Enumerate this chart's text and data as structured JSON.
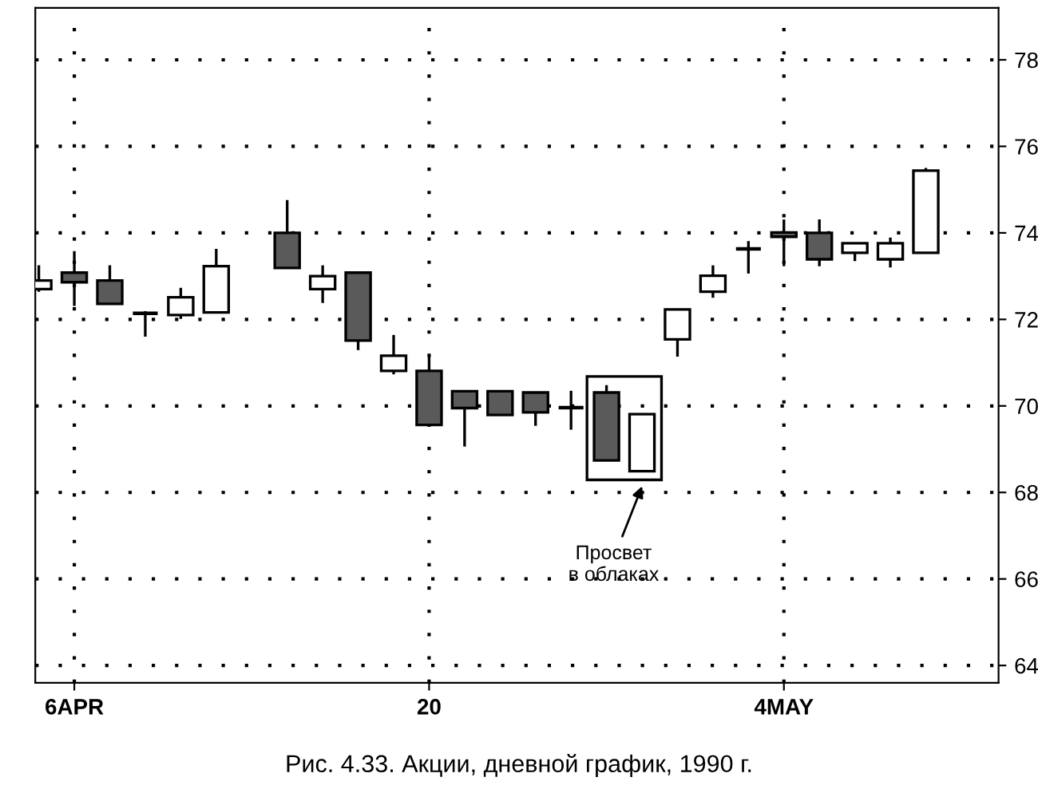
{
  "chart_data": {
    "type": "candlestick",
    "categories": [
      null,
      "6APR",
      null,
      null,
      null,
      null,
      null,
      null,
      null,
      null,
      null,
      "20",
      null,
      null,
      null,
      null,
      null,
      null,
      null,
      null,
      null,
      "4MAY",
      null,
      null,
      null,
      null
    ],
    "ohlc": [
      [
        72.7,
        73.25,
        72.64,
        72.9
      ],
      [
        73.08,
        73.58,
        72.31,
        72.86
      ],
      [
        72.9,
        73.25,
        72.36,
        72.36
      ],
      [
        72.14,
        72.19,
        71.6,
        72.14
      ],
      [
        72.1,
        72.73,
        72.01,
        72.51
      ],
      [
        72.16,
        73.63,
        72.16,
        73.23
      ],
      null,
      [
        74.0,
        74.76,
        73.19,
        73.19
      ],
      [
        72.7,
        73.25,
        72.38,
        73.0
      ],
      [
        73.08,
        73.08,
        71.29,
        71.51
      ],
      [
        70.81,
        71.64,
        70.73,
        71.16
      ],
      [
        70.81,
        71.16,
        69.56,
        69.56
      ],
      [
        70.34,
        70.34,
        69.06,
        69.95
      ],
      [
        70.34,
        70.34,
        69.79,
        69.79
      ],
      [
        70.31,
        70.31,
        69.54,
        69.85
      ],
      [
        69.96,
        70.35,
        69.45,
        69.96
      ],
      [
        70.31,
        70.48,
        68.74,
        68.74
      ],
      [
        68.49,
        69.81,
        68.49,
        69.81
      ],
      [
        71.54,
        72.23,
        71.14,
        72.23
      ],
      [
        72.64,
        73.25,
        72.5,
        73.01
      ],
      [
        73.63,
        73.81,
        73.06,
        73.63
      ],
      [
        74.01,
        74.31,
        73.23,
        73.91
      ],
      [
        74.0,
        74.31,
        73.23,
        73.39
      ],
      [
        73.54,
        73.76,
        73.35,
        73.76
      ],
      [
        73.39,
        73.89,
        73.2,
        73.76
      ],
      [
        73.54,
        75.5,
        73.54,
        75.44
      ]
    ],
    "ylim": [
      63.6,
      79.2
    ],
    "yticks": [
      64,
      66,
      68,
      70,
      72,
      74,
      76,
      78
    ],
    "grid": true,
    "annotations": [
      "Просвет\nв облаках",
      "Рис. 4.33. Акции, дневной график, 1990 г."
    ]
  }
}
